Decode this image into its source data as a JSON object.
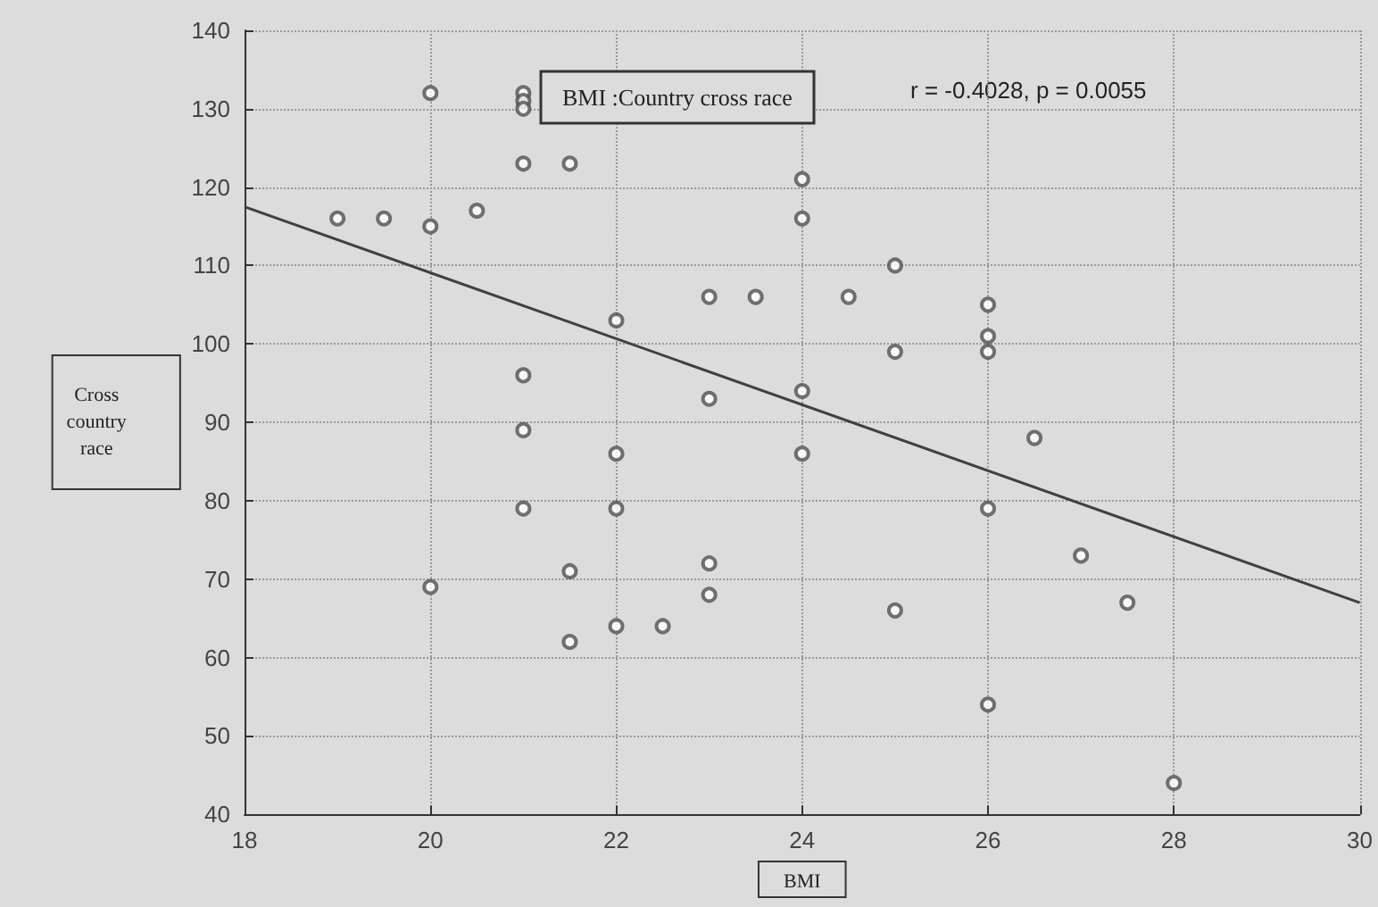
{
  "chart_data": {
    "type": "scatter",
    "title": "BMI :Country cross race",
    "xlabel": "BMI",
    "ylabel": "Cross\ncountry\nrace",
    "annotations": [
      "r = -0.4028, p = 0.0055"
    ],
    "marker": "circle",
    "grid": true,
    "xlim": [
      18,
      30
    ],
    "xticks": [
      18,
      20,
      22,
      24,
      26,
      28,
      30
    ],
    "ylim": [
      40,
      140
    ],
    "yticks": [
      40,
      50,
      60,
      70,
      80,
      90,
      100,
      110,
      120,
      130,
      140
    ],
    "series": [
      {
        "color": "#505050",
        "x": [
          19,
          19.5,
          20,
          20,
          20.5,
          21,
          21,
          21,
          21,
          21.5,
          20,
          21,
          21,
          21,
          21.5,
          21.5,
          22,
          22,
          22,
          22,
          22.5,
          23,
          23,
          23,
          23,
          23.5,
          24,
          24,
          24,
          24,
          24.5,
          25,
          25,
          25,
          26,
          26,
          26,
          26,
          26,
          26.5,
          27,
          27.5,
          28
        ],
        "values": [
          116,
          116,
          132,
          115,
          117,
          132,
          131,
          130,
          123,
          123,
          69,
          96,
          89,
          79,
          71,
          62,
          103,
          86,
          79,
          64,
          64,
          106,
          93,
          72,
          68,
          106,
          121,
          116,
          94,
          86,
          106,
          110,
          99,
          66,
          105,
          101,
          99,
          79,
          54,
          88,
          73,
          67,
          44
        ]
      },
      {
        "type": "line",
        "color": "#404040",
        "line_style": "solid",
        "marker": "none",
        "x": [
          18,
          30
        ],
        "values": [
          117.5,
          67
        ]
      }
    ]
  }
}
